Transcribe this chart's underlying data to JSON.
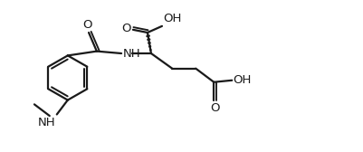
{
  "bg_color": "#ffffff",
  "line_color": "#1a1a1a",
  "line_width": 1.6,
  "font_size": 9.5,
  "fig_width": 4.02,
  "fig_height": 1.68,
  "dpi": 100,
  "xlim": [
    0,
    10
  ],
  "ylim": [
    0,
    4.2
  ]
}
